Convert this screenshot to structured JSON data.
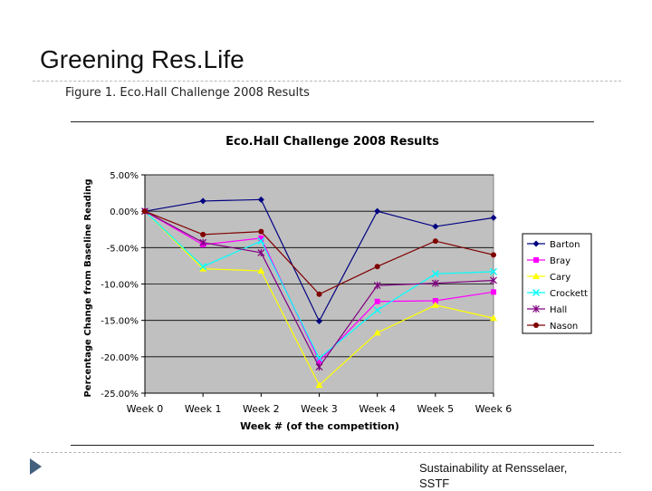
{
  "slide": {
    "title": "Greening Res.Life",
    "figure_caption": "Figure 1. Eco.Hall Challenge 2008 Results",
    "footer_line1": "Sustainability at Rensselaer,",
    "footer_line2": "SSTF"
  },
  "colors": {
    "plot_background": "#c0c0c0",
    "Barton": "#000080",
    "Bray": "#ff00ff",
    "Cary": "#ffff00",
    "Crockett": "#00ffff",
    "Hall": "#800080",
    "Nason": "#800000"
  },
  "chart_data": {
    "type": "line",
    "title": "Eco.Hall Challenge 2008 Results",
    "xlabel": "Week # (of the competition)",
    "ylabel": "Percentage Change from Baseline Reading",
    "categories": [
      "Week 0",
      "Week 1",
      "Week 2",
      "Week 3",
      "Week 4",
      "Week 5",
      "Week 6"
    ],
    "ylim": [
      -25,
      5
    ],
    "yticks": [
      5,
      0,
      -5,
      -10,
      -15,
      -20,
      -25
    ],
    "ytick_labels": [
      "5.00%",
      "0.00%",
      "-5.00%",
      "-10.00%",
      "-15.00%",
      "-20.00%",
      "-25.00%"
    ],
    "grid": true,
    "legend": "right",
    "series": [
      {
        "name": "Barton",
        "marker": "diamond",
        "values": [
          0,
          1.4,
          1.6,
          -15.1,
          0,
          -2.1,
          -0.9
        ]
      },
      {
        "name": "Bray",
        "marker": "square",
        "values": [
          0,
          -4.6,
          -3.7,
          -20.6,
          -12.4,
          -12.3,
          -11.1
        ]
      },
      {
        "name": "Cary",
        "marker": "triangle",
        "values": [
          0,
          -7.9,
          -8.2,
          -23.9,
          -16.7,
          -12.9,
          -14.7
        ]
      },
      {
        "name": "Crockett",
        "marker": "x",
        "values": [
          0,
          -7.6,
          -4.1,
          -20.2,
          -13.6,
          -8.6,
          -8.3
        ]
      },
      {
        "name": "Hall",
        "marker": "star",
        "values": [
          0,
          -4.3,
          -5.7,
          -21.4,
          -10.2,
          -9.9,
          -9.5
        ]
      },
      {
        "name": "Nason",
        "marker": "circle",
        "values": [
          0,
          -3.2,
          -2.8,
          -11.4,
          -7.6,
          -4.1,
          -6.0
        ]
      }
    ]
  }
}
